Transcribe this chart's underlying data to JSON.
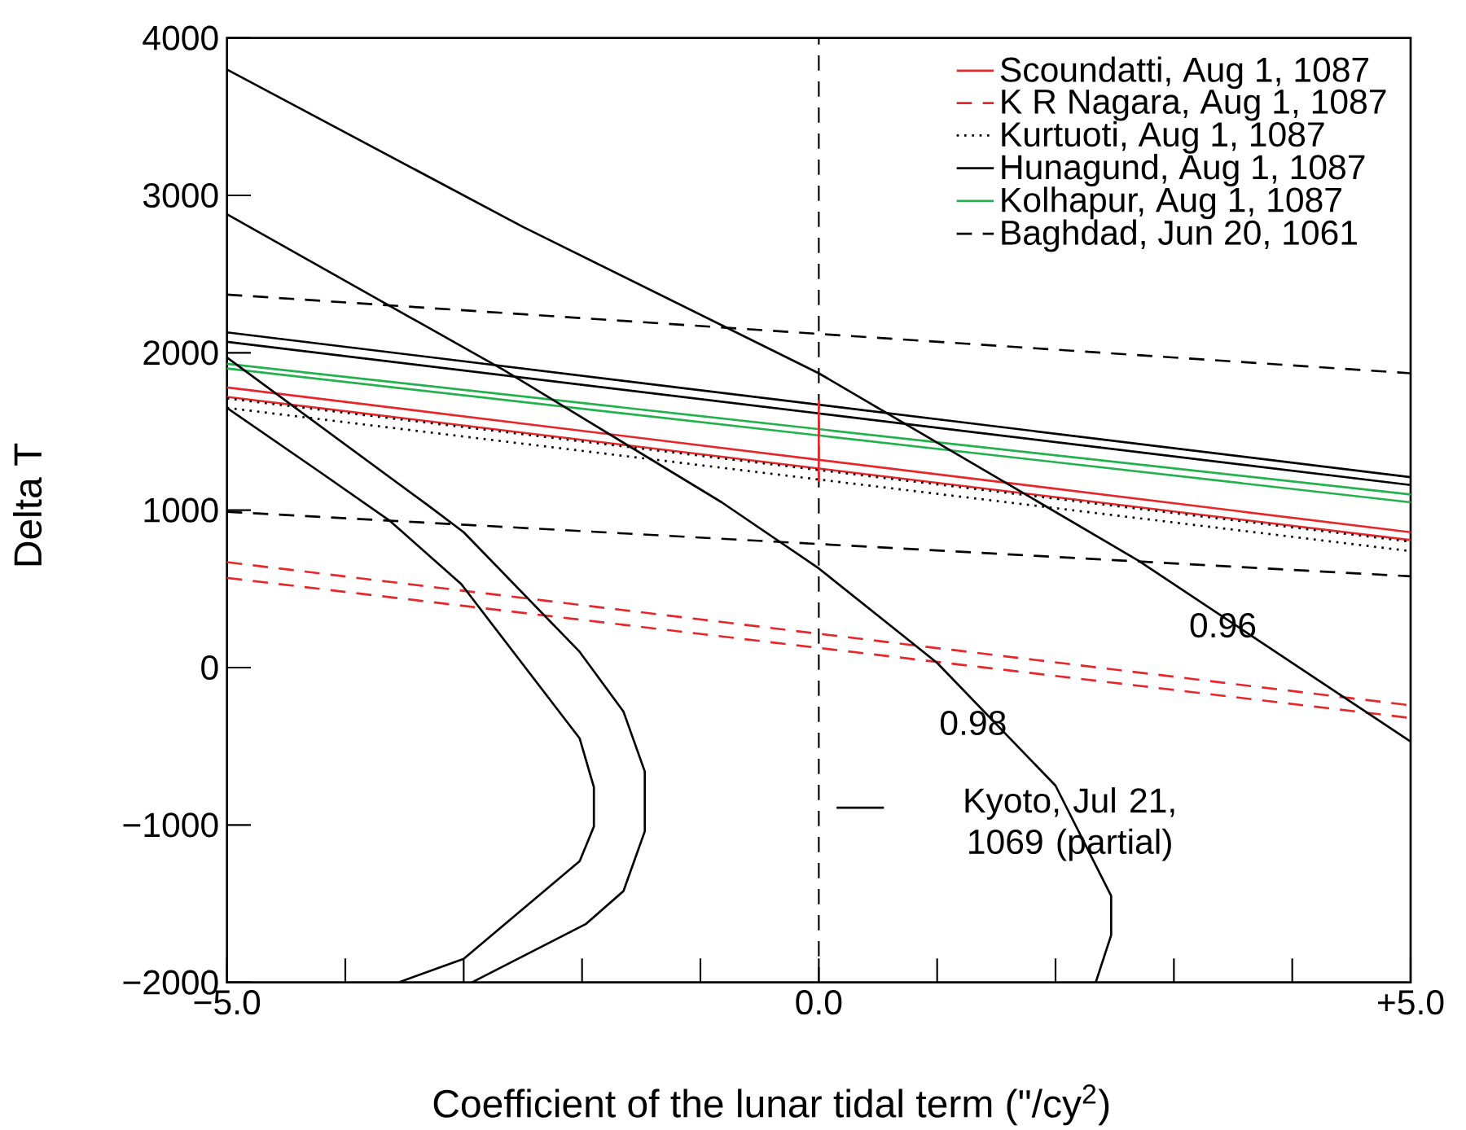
{
  "chart_data": {
    "type": "line",
    "xlabel": "Coefficient of the lunar tidal term (\"/cy$^{2}$)",
    "ylabel": "Delta T",
    "xlim": [
      -5,
      5
    ],
    "ylim": [
      -2000,
      4000
    ],
    "xticks": [
      {
        "value": -5,
        "label": "−5.0"
      },
      {
        "value": -4,
        "label": null
      },
      {
        "value": -3,
        "label": null
      },
      {
        "value": -2,
        "label": null
      },
      {
        "value": -1,
        "label": null
      },
      {
        "value": 0,
        "label": "0.0"
      },
      {
        "value": 1,
        "label": null
      },
      {
        "value": 2,
        "label": null
      },
      {
        "value": 3,
        "label": null
      },
      {
        "value": 4,
        "label": null
      },
      {
        "value": 5,
        "label": "+5.0"
      }
    ],
    "yticks": [
      {
        "value": -2000,
        "label": "−2000"
      },
      {
        "value": -1000,
        "label": "−1000"
      },
      0,
      1000,
      2000,
      3000,
      4000
    ],
    "legend": "top right",
    "grid": false,
    "marker": "none",
    "series": [
      {
        "name": "Scoundatti, Aug 1, 1087",
        "color": "#e8262a",
        "line_style": "solid",
        "x": [
          -5,
          5
        ],
        "values": [
          1780,
          860
        ]
      },
      {
        "color": "#e8262a",
        "line_style": "solid",
        "x": [
          -5,
          5
        ],
        "values": [
          1720,
          810
        ]
      },
      {
        "name": "K R Nagara, Aug 1, 1087",
        "color": "#e8262a",
        "line_style": "dashed",
        "x": [
          -5,
          5
        ],
        "values": [
          670,
          -240
        ]
      },
      {
        "color": "#e8262a",
        "line_style": "dashed",
        "x": [
          -5,
          5
        ],
        "values": [
          570,
          -320
        ]
      },
      {
        "name": "Kurtuoti, Aug 1, 1087",
        "color": "#000000",
        "line_style": "dotted",
        "x": [
          -5,
          5
        ],
        "values": [
          1710,
          800
        ]
      },
      {
        "color": "#000000",
        "line_style": "dotted",
        "x": [
          -5,
          5
        ],
        "values": [
          1650,
          740
        ]
      },
      {
        "name": "Hunagund, Aug 1, 1087",
        "color": "#000000",
        "line_style": "solid",
        "x": [
          -5,
          5
        ],
        "values": [
          2130,
          1210
        ]
      },
      {
        "color": "#000000",
        "line_style": "solid",
        "x": [
          -5,
          5
        ],
        "values": [
          2070,
          1160
        ]
      },
      {
        "name": "Kolhapur, Aug 1, 1087",
        "color": "#22b14c",
        "line_style": "solid",
        "x": [
          -5,
          5
        ],
        "values": [
          1930,
          1100
        ]
      },
      {
        "color": "#22b14c",
        "line_style": "solid",
        "x": [
          -5,
          5
        ],
        "values": [
          1900,
          1050
        ]
      },
      {
        "name": "Baghdad, Jun 20, 1061",
        "color": "#000000",
        "line_style": "dashed",
        "x": [
          -5,
          5
        ],
        "values": [
          2370,
          1870
        ]
      },
      {
        "color": "#000000",
        "line_style": "dashed",
        "x": [
          -5,
          5
        ],
        "values": [
          990,
          580
        ]
      },
      {
        "name": "Kyoto, Jul 21, 1069 (partial)",
        "color": "#000000",
        "line_style": "solid",
        "x": [
          -5,
          -2.5,
          0,
          2.7,
          5
        ],
        "values": [
          3800,
          2800,
          1870,
          680,
          -470
        ]
      },
      {
        "color": "#000000",
        "line_style": "solid",
        "x": [
          -5,
          -2.66,
          -0.82,
          0,
          1.0,
          2.0,
          2.47,
          2.47,
          2.34
        ],
        "values": [
          2880,
          1890,
          1050,
          630,
          30,
          -750,
          -1450,
          -1700,
          -2000
        ]
      },
      {
        "color": "#000000",
        "line_style": "solid",
        "x": [
          -5,
          -3.3,
          -3.0,
          -2.02,
          -1.65,
          -1.47,
          -1.47,
          -1.65,
          -1.97,
          -2.93
        ],
        "values": [
          1970,
          1030,
          860,
          100,
          -280,
          -660,
          -1040,
          -1420,
          -1630,
          -2000
        ]
      },
      {
        "color": "#000000",
        "line_style": "solid",
        "x": [
          -5,
          -4.21,
          -3.62,
          -3.02,
          -2.02,
          -1.9,
          -1.9,
          -2.02,
          -3.0,
          -3.55
        ],
        "values": [
          1650,
          1240,
          930,
          530,
          -450,
          -760,
          -1010,
          -1230,
          -1850,
          -2000
        ]
      },
      {
        "color": "#e8262a",
        "line_style": "solid",
        "x": [
          0,
          0
        ],
        "values": [
          1700,
          1180
        ]
      }
    ],
    "ref_lines": [
      {
        "axis": "x",
        "value": 0,
        "color": "#000000",
        "line_style": "dashed"
      }
    ],
    "annotations": [
      {
        "text": "0.96",
        "x": 3.74,
        "y": 160
      },
      {
        "text": "0.98",
        "x": 1.63,
        "y": -460
      }
    ]
  }
}
